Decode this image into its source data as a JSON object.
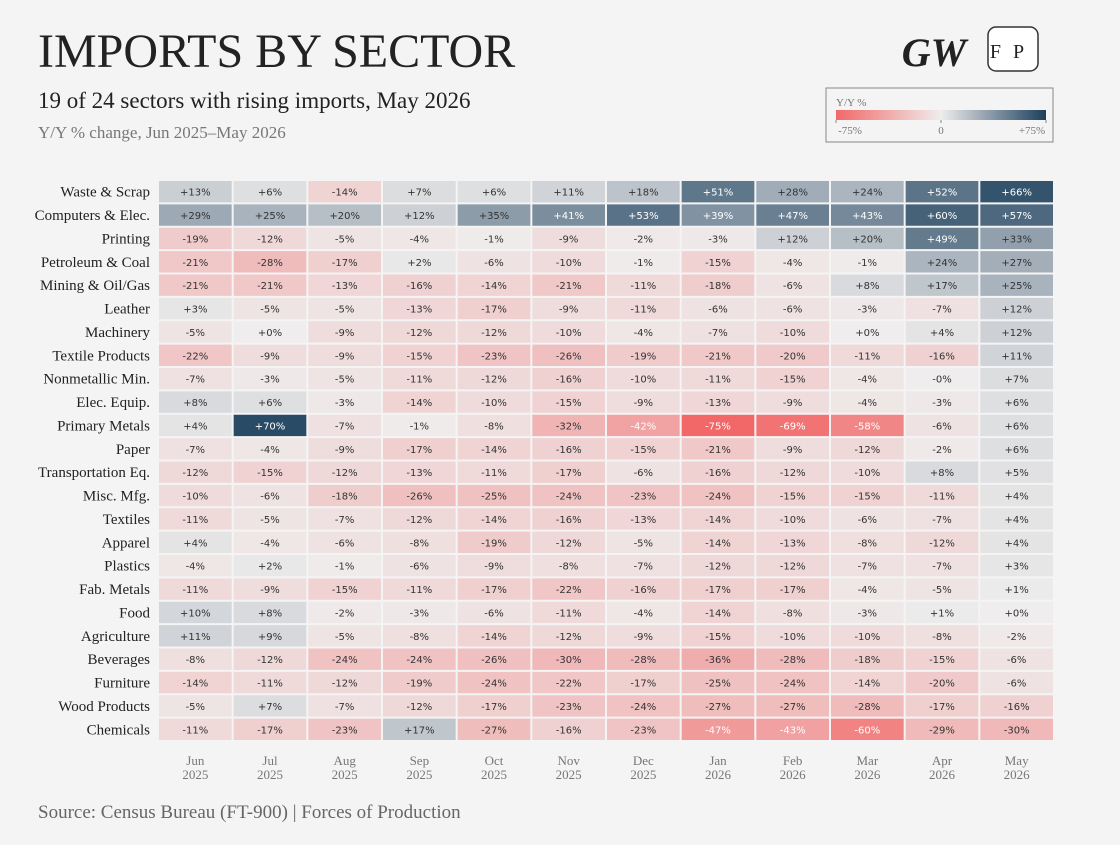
{
  "chart_data": {
    "type": "heatmap",
    "title": "IMPORTS BY SECTOR",
    "subtitle": "19 of 24 sectors with rising imports, May 2026",
    "caption": "Y/Y % change, Jun 2025–May 2026",
    "source": "Source: Census Bureau (FT-900) | Forces of Production",
    "logos": [
      "GW",
      "FP"
    ],
    "categories": [
      "Jun 2025",
      "Jul 2025",
      "Aug 2025",
      "Sep 2025",
      "Oct 2025",
      "Nov 2025",
      "Dec 2025",
      "Jan 2026",
      "Feb 2026",
      "Mar 2026",
      "Apr 2026",
      "May 2026"
    ],
    "rows": [
      "Waste & Scrap",
      "Computers & Elec.",
      "Printing",
      "Petroleum & Coal",
      "Mining & Oil/Gas",
      "Leather",
      "Machinery",
      "Textile Products",
      "Nonmetallic Min.",
      "Elec. Equip.",
      "Primary Metals",
      "Paper",
      "Transportation Eq.",
      "Misc. Mfg.",
      "Textiles",
      "Apparel",
      "Plastics",
      "Fab. Metals",
      "Food",
      "Agriculture",
      "Beverages",
      "Furniture",
      "Wood Products",
      "Chemicals"
    ],
    "values": [
      [
        13,
        6,
        -14,
        7,
        6,
        11,
        18,
        51,
        28,
        24,
        52,
        66
      ],
      [
        29,
        25,
        20,
        12,
        35,
        41,
        53,
        39,
        47,
        43,
        60,
        57
      ],
      [
        -19,
        -12,
        -5,
        -4,
        -1,
        -9,
        -2,
        -3,
        12,
        20,
        49,
        33
      ],
      [
        -21,
        -28,
        -17,
        2,
        -6,
        -10,
        -1,
        -15,
        -4,
        -1,
        24,
        27
      ],
      [
        -21,
        -21,
        -13,
        -16,
        -14,
        -21,
        -11,
        -18,
        -6,
        8,
        17,
        25
      ],
      [
        3,
        -5,
        -5,
        -13,
        -17,
        -9,
        -11,
        -6,
        -6,
        -3,
        -7,
        12
      ],
      [
        -5,
        0,
        -9,
        -12,
        -12,
        -10,
        -4,
        -7,
        -10,
        0,
        4,
        12
      ],
      [
        -22,
        -9,
        -9,
        -15,
        -23,
        -26,
        -19,
        -21,
        -20,
        -11,
        -16,
        11
      ],
      [
        -7,
        -3,
        -5,
        -11,
        -12,
        -16,
        -10,
        -11,
        -15,
        -4,
        0,
        7
      ],
      [
        8,
        6,
        -3,
        -14,
        -10,
        -15,
        -9,
        -13,
        -9,
        -4,
        -3,
        6
      ],
      [
        4,
        70,
        -7,
        -1,
        -8,
        -32,
        -42,
        -75,
        -69,
        -58,
        -6,
        6
      ],
      [
        -7,
        -4,
        -9,
        -17,
        -14,
        -16,
        -15,
        -21,
        -9,
        -12,
        -2,
        6
      ],
      [
        -12,
        -15,
        -12,
        -13,
        -11,
        -17,
        -6,
        -16,
        -12,
        -10,
        8,
        5
      ],
      [
        -10,
        -6,
        -18,
        -26,
        -25,
        -24,
        -23,
        -24,
        -15,
        -15,
        -11,
        4
      ],
      [
        -11,
        -5,
        -7,
        -12,
        -14,
        -16,
        -13,
        -14,
        -10,
        -6,
        -7,
        4
      ],
      [
        4,
        -4,
        -6,
        -8,
        -19,
        -12,
        -5,
        -14,
        -13,
        -8,
        -12,
        4
      ],
      [
        -4,
        2,
        -1,
        -6,
        -9,
        -8,
        -7,
        -12,
        -12,
        -7,
        -7,
        3
      ],
      [
        -11,
        -9,
        -15,
        -11,
        -17,
        -22,
        -16,
        -17,
        -17,
        -4,
        -5,
        1
      ],
      [
        10,
        8,
        -2,
        -3,
        -6,
        -11,
        -4,
        -14,
        -8,
        -3,
        1,
        0
      ],
      [
        11,
        9,
        -5,
        -8,
        -14,
        -12,
        -9,
        -15,
        -10,
        -10,
        -8,
        -2
      ],
      [
        -8,
        -12,
        -24,
        -24,
        -26,
        -30,
        -28,
        -36,
        -28,
        -18,
        -15,
        -6
      ],
      [
        -14,
        -11,
        -12,
        -19,
        -24,
        -22,
        -17,
        -25,
        -24,
        -14,
        -20,
        -6
      ],
      [
        -5,
        7,
        -7,
        -12,
        -17,
        -23,
        -24,
        -27,
        -27,
        -28,
        -17,
        -16
      ],
      [
        -11,
        -17,
        -23,
        17,
        -27,
        -16,
        -23,
        -47,
        -43,
        -60,
        -29,
        -30
      ]
    ],
    "value_labels": [
      [
        "+13%",
        "+6%",
        "-14%",
        "+7%",
        "+6%",
        "+11%",
        "+18%",
        "+51%",
        "+28%",
        "+24%",
        "+52%",
        "+66%"
      ],
      [
        "+29%",
        "+25%",
        "+20%",
        "+12%",
        "+35%",
        "+41%",
        "+53%",
        "+39%",
        "+47%",
        "+43%",
        "+60%",
        "+57%"
      ],
      [
        "-19%",
        "-12%",
        "-5%",
        "-4%",
        "-1%",
        "-9%",
        "-2%",
        "-3%",
        "+12%",
        "+20%",
        "+49%",
        "+33%"
      ],
      [
        "-21%",
        "-28%",
        "-17%",
        "+2%",
        "-6%",
        "-10%",
        "-1%",
        "-15%",
        "-4%",
        "-1%",
        "+24%",
        "+27%"
      ],
      [
        "-21%",
        "-21%",
        "-13%",
        "-16%",
        "-14%",
        "-21%",
        "-11%",
        "-18%",
        "-6%",
        "+8%",
        "+17%",
        "+25%"
      ],
      [
        "+3%",
        "-5%",
        "-5%",
        "-13%",
        "-17%",
        "-9%",
        "-11%",
        "-6%",
        "-6%",
        "-3%",
        "-7%",
        "+12%"
      ],
      [
        "-5%",
        "+0%",
        "-9%",
        "-12%",
        "-12%",
        "-10%",
        "-4%",
        "-7%",
        "-10%",
        "+0%",
        "+4%",
        "+12%"
      ],
      [
        "-22%",
        "-9%",
        "-9%",
        "-15%",
        "-23%",
        "-26%",
        "-19%",
        "-21%",
        "-20%",
        "-11%",
        "-16%",
        "+11%"
      ],
      [
        "-7%",
        "-3%",
        "-5%",
        "-11%",
        "-12%",
        "-16%",
        "-10%",
        "-11%",
        "-15%",
        "-4%",
        "-0%",
        "+7%"
      ],
      [
        "+8%",
        "+6%",
        "-3%",
        "-14%",
        "-10%",
        "-15%",
        "-9%",
        "-13%",
        "-9%",
        "-4%",
        "-3%",
        "+6%"
      ],
      [
        "+4%",
        "+70%",
        "-7%",
        "-1%",
        "-8%",
        "-32%",
        "-42%",
        "-75%",
        "-69%",
        "-58%",
        "-6%",
        "+6%"
      ],
      [
        "-7%",
        "-4%",
        "-9%",
        "-17%",
        "-14%",
        "-16%",
        "-15%",
        "-21%",
        "-9%",
        "-12%",
        "-2%",
        "+6%"
      ],
      [
        "-12%",
        "-15%",
        "-12%",
        "-13%",
        "-11%",
        "-17%",
        "-6%",
        "-16%",
        "-12%",
        "-10%",
        "+8%",
        "+5%"
      ],
      [
        "-10%",
        "-6%",
        "-18%",
        "-26%",
        "-25%",
        "-24%",
        "-23%",
        "-24%",
        "-15%",
        "-15%",
        "-11%",
        "+4%"
      ],
      [
        "-11%",
        "-5%",
        "-7%",
        "-12%",
        "-14%",
        "-16%",
        "-13%",
        "-14%",
        "-10%",
        "-6%",
        "-7%",
        "+4%"
      ],
      [
        "+4%",
        "-4%",
        "-6%",
        "-8%",
        "-19%",
        "-12%",
        "-5%",
        "-14%",
        "-13%",
        "-8%",
        "-12%",
        "+4%"
      ],
      [
        "-4%",
        "+2%",
        "-1%",
        "-6%",
        "-9%",
        "-8%",
        "-7%",
        "-12%",
        "-12%",
        "-7%",
        "-7%",
        "+3%"
      ],
      [
        "-11%",
        "-9%",
        "-15%",
        "-11%",
        "-17%",
        "-22%",
        "-16%",
        "-17%",
        "-17%",
        "-4%",
        "-5%",
        "+1%"
      ],
      [
        "+10%",
        "+8%",
        "-2%",
        "-3%",
        "-6%",
        "-11%",
        "-4%",
        "-14%",
        "-8%",
        "-3%",
        "+1%",
        "+0%"
      ],
      [
        "+11%",
        "+9%",
        "-5%",
        "-8%",
        "-14%",
        "-12%",
        "-9%",
        "-15%",
        "-10%",
        "-10%",
        "-8%",
        "-2%"
      ],
      [
        "-8%",
        "-12%",
        "-24%",
        "-24%",
        "-26%",
        "-30%",
        "-28%",
        "-36%",
        "-28%",
        "-18%",
        "-15%",
        "-6%"
      ],
      [
        "-14%",
        "-11%",
        "-12%",
        "-19%",
        "-24%",
        "-22%",
        "-17%",
        "-25%",
        "-24%",
        "-14%",
        "-20%",
        "-6%"
      ],
      [
        "-5%",
        "+7%",
        "-7%",
        "-12%",
        "-17%",
        "-23%",
        "-24%",
        "-27%",
        "-27%",
        "-28%",
        "-17%",
        "-16%"
      ],
      [
        "-11%",
        "-17%",
        "-23%",
        "+17%",
        "-27%",
        "-16%",
        "-23%",
        "-47%",
        "-43%",
        "-60%",
        "-29%",
        "-30%"
      ]
    ],
    "colorbar": {
      "label": "Y/Y %",
      "lim": [
        -75,
        75
      ],
      "ticks": [
        {
          "value": -75,
          "label": "-75%"
        },
        0,
        {
          "value": 75,
          "label": "+75%"
        }
      ]
    },
    "colors": {
      "low": "#f26868",
      "mid": "#efeded",
      "high": "#1b3f5c"
    }
  }
}
